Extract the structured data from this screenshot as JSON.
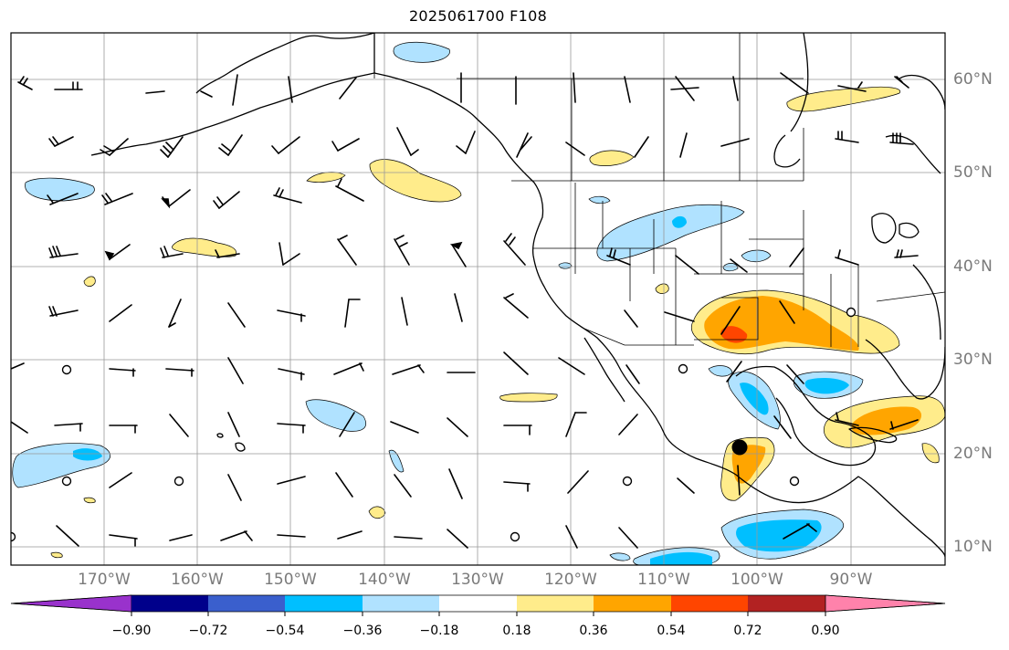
{
  "title": "2025061700 F108",
  "map": {
    "lon_labels": [
      "170°W",
      "160°W",
      "150°W",
      "140°W",
      "130°W",
      "120°W",
      "110°W",
      "100°W",
      "90°W"
    ],
    "lat_labels": [
      "60°N",
      "50°N",
      "40°N",
      "30°N",
      "20°N",
      "10°N"
    ],
    "grid": true,
    "region": "North Pacific / North America"
  },
  "colorbar": {
    "labels": [
      "−0.90",
      "−0.72",
      "−0.54",
      "−0.36",
      "−0.18",
      "0.18",
      "0.36",
      "0.54",
      "0.72",
      "0.90"
    ],
    "colors": [
      "#9932cc",
      "#00008b",
      "#3a5fcd",
      "#00bfff",
      "#b0e2ff",
      "#ffffff",
      "#ffec8b",
      "#ffa500",
      "#ff4500",
      "#b22222",
      "#ff82ab"
    ],
    "extend": "both"
  },
  "colors": {
    "neg_light": "#b0e2ff",
    "neg_mid": "#00bfff",
    "neg_dark": "#3a5fcd",
    "pos_light": "#ffec8b",
    "pos_mid": "#ffa500",
    "pos_dark": "#ff4500",
    "grid": "#999999",
    "coast": "#000000"
  },
  "icons": {
    "wind_barb": "wind-barb-icon",
    "calm": "calm-circle-icon",
    "marker": "location-marker-icon"
  }
}
